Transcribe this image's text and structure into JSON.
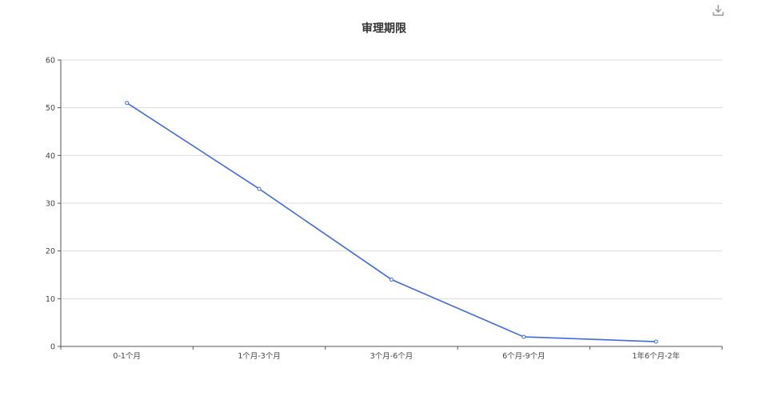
{
  "chart_data": {
    "type": "line",
    "title": "审理期限",
    "xlabel": "",
    "ylabel": "",
    "categories": [
      "0-1个月",
      "1个月-3个月",
      "3个月-6个月",
      "6个月-9个月",
      "1年6个月-2年"
    ],
    "series": [
      {
        "values": [
          51,
          33,
          14,
          2,
          1
        ]
      }
    ],
    "ylim": [
      0,
      60
    ],
    "yticks": [
      "0",
      "10",
      "20",
      "30",
      "40",
      "50",
      "60"
    ],
    "grid": true,
    "legend": "none"
  },
  "toolbar": {
    "download_icon": "download-icon"
  },
  "colors": {
    "line": "#4169e1",
    "grid": "#dcdcdc",
    "axis": "#555555",
    "text": "#444444",
    "title": "#333333"
  }
}
